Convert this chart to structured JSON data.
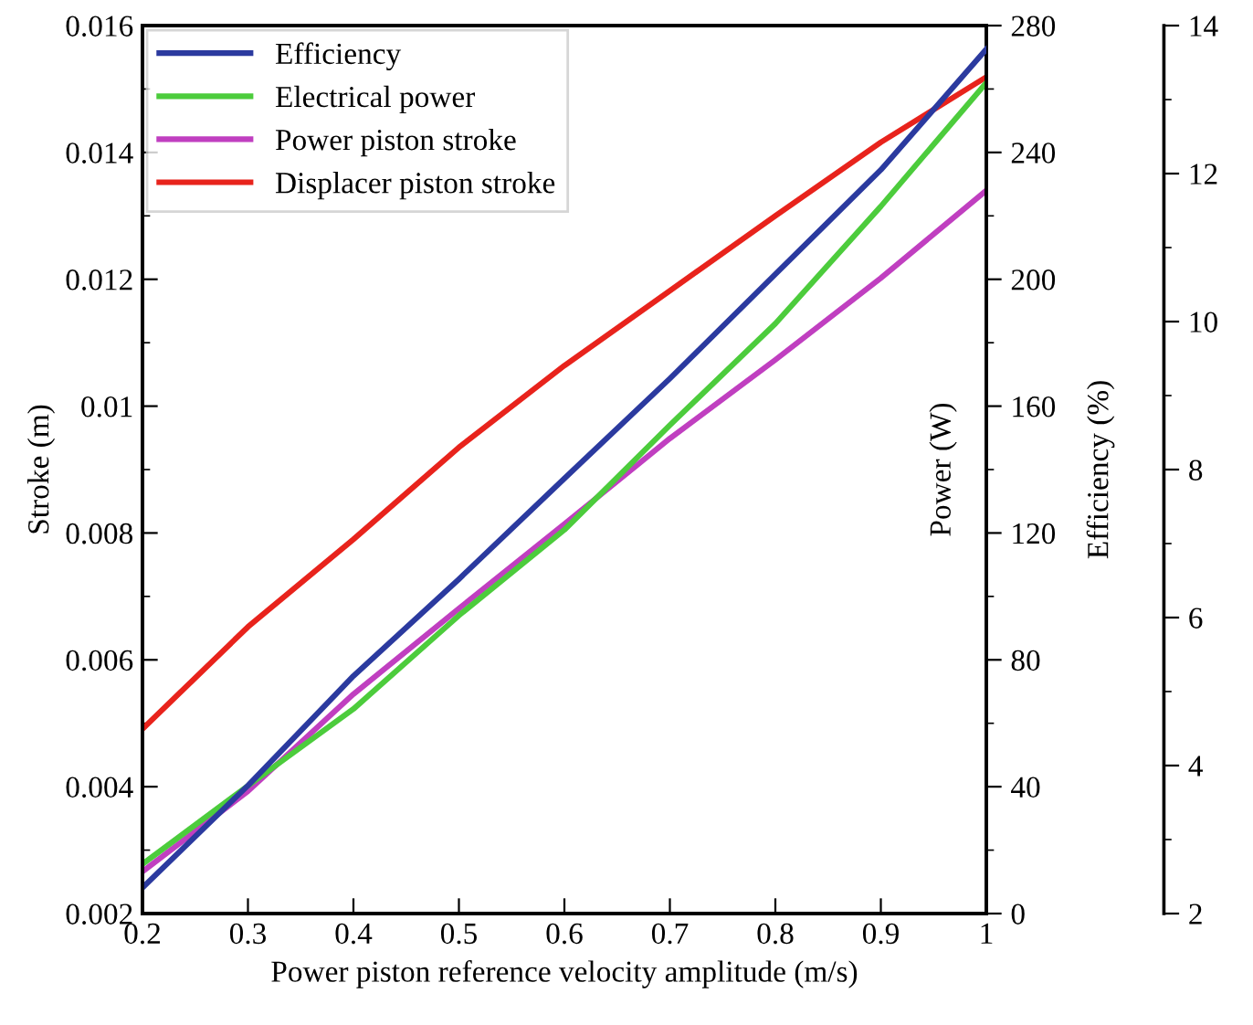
{
  "chart_data": {
    "type": "line",
    "xlabel": "Power piston reference velocity amplitude (m/s)",
    "ylabel": "Stroke (m)",
    "y2label": "Power (W)",
    "y3label": "Efficiency (%)",
    "xlim": [
      0.2,
      1
    ],
    "xticks": [
      0.2,
      0.3,
      0.4,
      0.5,
      0.6,
      0.7,
      0.8,
      0.9,
      1
    ],
    "ylim": [
      0.002,
      0.016
    ],
    "yticks": [
      0.002,
      0.004,
      0.006,
      0.008,
      0.01,
      0.012,
      0.014,
      0.016
    ],
    "y2lim": [
      0,
      280
    ],
    "y2ticks": [
      0,
      40,
      80,
      120,
      160,
      200,
      240,
      280
    ],
    "y3lim": [
      2,
      14
    ],
    "y3ticks": [
      2,
      4,
      6,
      8,
      10,
      12,
      14
    ],
    "x": [
      0.2,
      0.3,
      0.4,
      0.5,
      0.6,
      0.7,
      0.8,
      0.9,
      1
    ],
    "legend": "top left",
    "grid": false,
    "line_style": "solid",
    "marker": "none",
    "series": [
      {
        "name": "Efficiency",
        "color": "#2b3a9f",
        "axis": "y3",
        "values": [
          2.35,
          3.73,
          5.21,
          6.52,
          7.88,
          9.23,
          10.64,
          12.05,
          13.68
        ]
      },
      {
        "name": "Electrical power",
        "color": "#4ccc3c",
        "axis": "y2",
        "values": [
          15.6,
          40.3,
          64.5,
          94,
          121,
          154,
          186,
          223,
          262
        ]
      },
      {
        "name": "Power piston stroke",
        "color": "#c03fc0",
        "axis": "y",
        "values": [
          0.00266,
          0.00393,
          0.00546,
          0.00681,
          0.00814,
          0.00949,
          0.01073,
          0.01202,
          0.0134
        ]
      },
      {
        "name": "Displacer piston stroke",
        "color": "#e8231c",
        "axis": "y",
        "values": [
          0.00491,
          0.00652,
          0.0079,
          0.00935,
          0.01064,
          0.01182,
          0.013,
          0.01416,
          0.01519
        ]
      }
    ]
  }
}
